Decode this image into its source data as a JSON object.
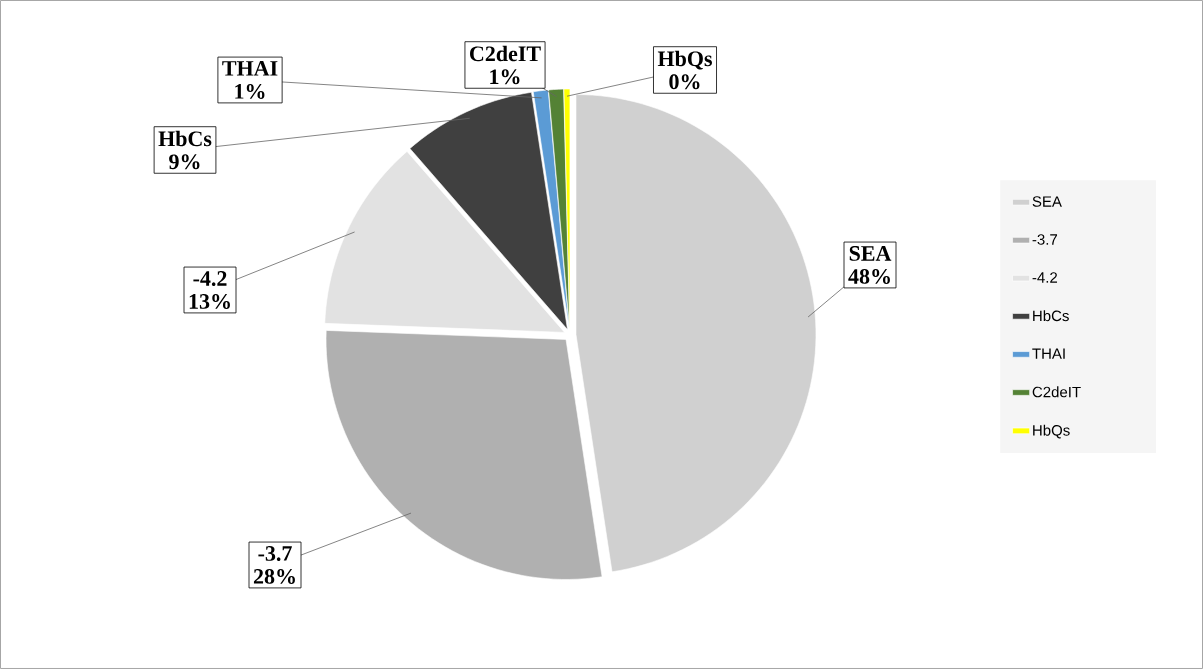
{
  "chart_data": {
    "type": "pie",
    "categories": [
      "SEA",
      "-3.7",
      "-4.2",
      "HbCs",
      "THAI",
      "C2deIT",
      "HbQs"
    ],
    "values": [
      47.6,
      28,
      13,
      9,
      1,
      1,
      0.4
    ],
    "value_labels": [
      "48%",
      "28%",
      "13%",
      "9%",
      "1%",
      "1%",
      "0%"
    ],
    "colors": [
      "#d0d0d0",
      "#b0b0b0",
      "#e2e2e2",
      "#404040",
      "#5b9bd5",
      "#548235",
      "#ffff00"
    ],
    "legend": "right"
  }
}
